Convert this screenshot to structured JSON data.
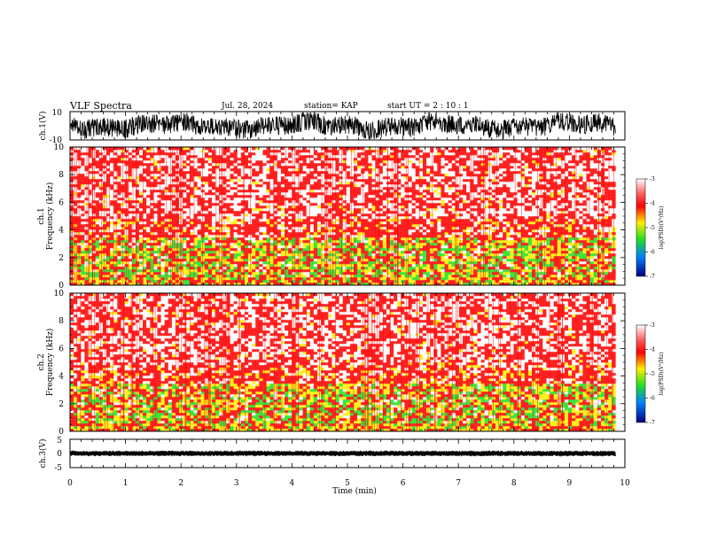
{
  "header": {
    "title": "VLF Spectra",
    "date": "Jul. 28, 2024",
    "station": "station= KAP",
    "start": "start  UT  =   2 : 10 : 1"
  },
  "colors": {
    "low": "#000080",
    "green": "#20e020",
    "yellow": "#ffee00",
    "red": "#ff0000",
    "pale": "#ffffff"
  },
  "chart_data": [
    {
      "type": "line",
      "panel": "waveform-ch1",
      "ylabel": "ch.1(V)",
      "ylim": [
        -10,
        10
      ],
      "yticks": [
        "10",
        "-10"
      ],
      "x_range_min": [
        0,
        9.83
      ]
    },
    {
      "type": "heatmap",
      "panel": "spectrogram-ch1",
      "ylabel": "ch.1\nFrequency (kHz)",
      "ylim": [
        0,
        10
      ],
      "yticks": [
        "0",
        "2",
        "4",
        "6",
        "8",
        "10"
      ],
      "x_range_min": [
        0,
        9.83
      ],
      "colorbar": {
        "label": "log(PSD)(V²/Hz)",
        "range": [
          -7,
          -3
        ],
        "ticks": [
          "-3",
          "-4",
          "-5",
          "-6",
          "-7"
        ]
      }
    },
    {
      "type": "heatmap",
      "panel": "spectrogram-ch2",
      "ylabel": "ch.2\nFrequency (kHz)",
      "ylim": [
        0,
        10
      ],
      "yticks": [
        "0",
        "2",
        "4",
        "6",
        "8",
        "10"
      ],
      "x_range_min": [
        0,
        9.83
      ],
      "colorbar": {
        "label": "log(PSD)(V²/Hz)",
        "range": [
          -7,
          -3
        ],
        "ticks": [
          "-3",
          "-4",
          "-5",
          "-6",
          "-7"
        ]
      }
    },
    {
      "type": "line",
      "panel": "waveform-ch3",
      "ylabel": "ch.3(V)",
      "ylim": [
        -5,
        5
      ],
      "yticks": [
        "5",
        "0",
        "-5"
      ],
      "x_range_min": [
        0,
        9.83
      ]
    }
  ],
  "xaxis": {
    "label": "Time (min)",
    "ticks": [
      "0",
      "1",
      "2",
      "3",
      "4",
      "5",
      "6",
      "7",
      "8",
      "9",
      "10"
    ],
    "range": [
      0,
      10
    ]
  }
}
